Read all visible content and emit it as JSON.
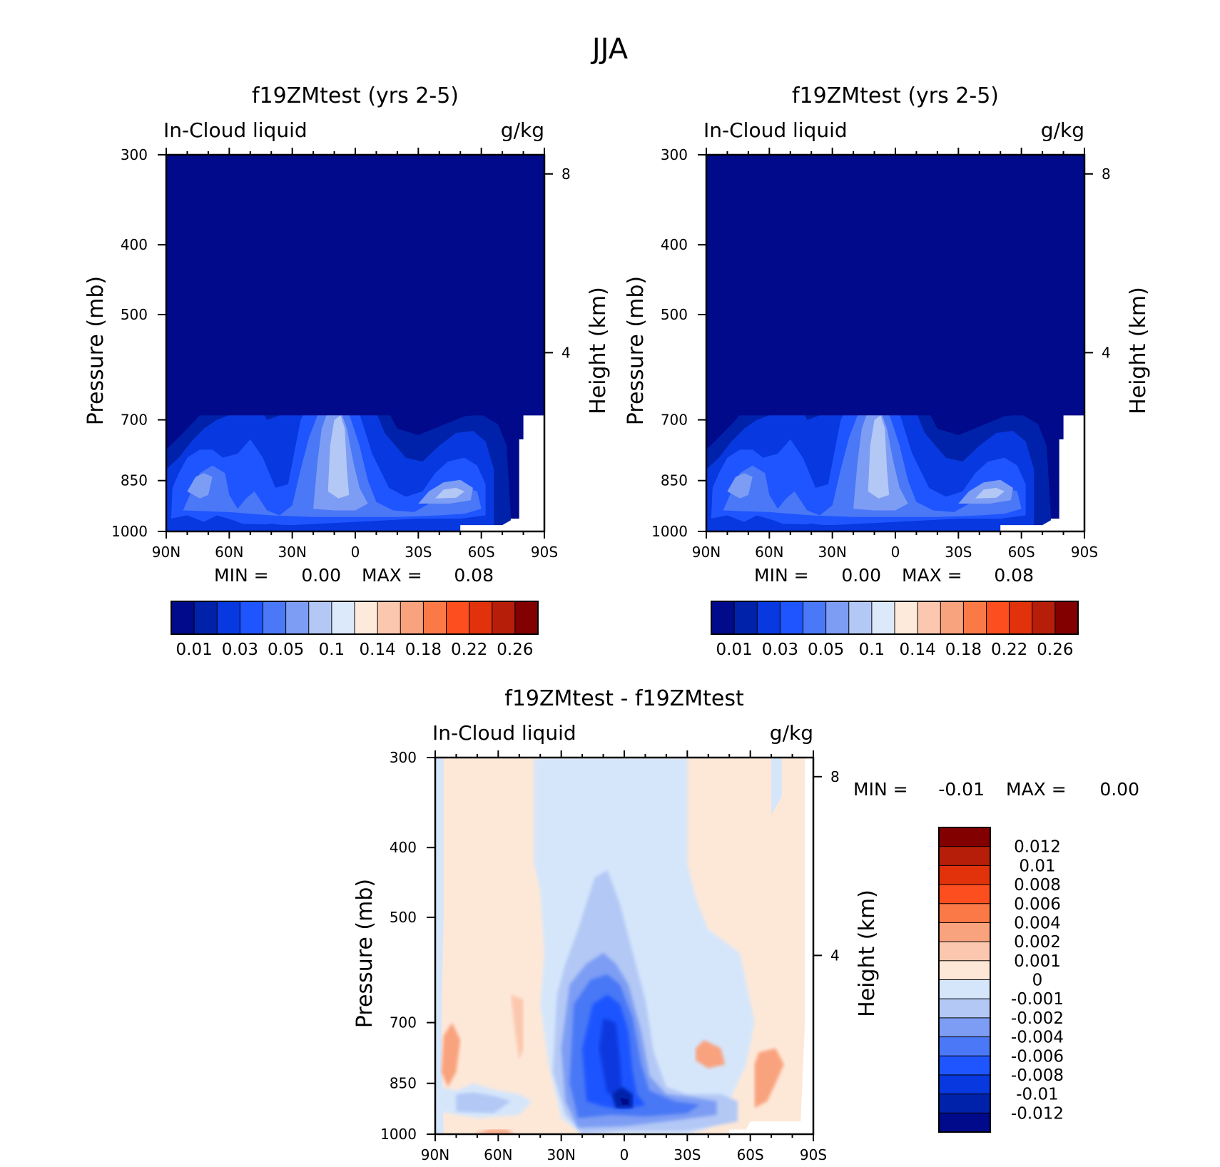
{
  "figure_title": "JJA",
  "chart_data": [
    {
      "type": "heatmap",
      "panel_title": "f19ZMtest (yrs 2-5)",
      "variable": "In-Cloud liquid",
      "units": "g/kg",
      "xlabel": "",
      "ylabel": "Pressure (mb)",
      "ylabel_right": "Height (km)",
      "xlim": [
        90,
        -90
      ],
      "ylim": [
        1000,
        300
      ],
      "x_ticks": [
        "90N",
        "60N",
        "30N",
        "0",
        "30S",
        "60S",
        "90S"
      ],
      "y_ticks": [
        "300",
        "400",
        "500",
        "700",
        "850",
        "1000"
      ],
      "y_ticks_right": [
        "8",
        "4"
      ],
      "min_label": "MIN =",
      "min_value": "0.00",
      "max_label": "MAX =",
      "max_value": "0.08",
      "colorbar_levels": [
        0.01,
        0.02,
        0.03,
        0.04,
        0.05,
        0.06,
        0.08,
        0.1,
        0.12,
        0.14,
        0.16,
        0.18,
        0.2,
        0.22,
        0.24,
        0.26
      ],
      "colorbar_tick_labels": [
        "0.01",
        "0.03",
        "0.05",
        "0.1",
        "0.14",
        "0.18",
        "0.22",
        "0.26"
      ],
      "colorbar_orientation": "horizontal"
    },
    {
      "type": "heatmap",
      "panel_title": "f19ZMtest (yrs 2-5)",
      "variable": "In-Cloud liquid",
      "units": "g/kg",
      "xlabel": "",
      "ylabel": "Pressure (mb)",
      "ylabel_right": "Height (km)",
      "xlim": [
        90,
        -90
      ],
      "ylim": [
        1000,
        300
      ],
      "x_ticks": [
        "90N",
        "60N",
        "30N",
        "0",
        "30S",
        "60S",
        "90S"
      ],
      "y_ticks": [
        "300",
        "400",
        "500",
        "700",
        "850",
        "1000"
      ],
      "y_ticks_right": [
        "8",
        "4"
      ],
      "min_label": "MIN =",
      "min_value": "0.00",
      "max_label": "MAX =",
      "max_value": "0.08",
      "colorbar_levels": [
        0.01,
        0.02,
        0.03,
        0.04,
        0.05,
        0.06,
        0.08,
        0.1,
        0.12,
        0.14,
        0.16,
        0.18,
        0.2,
        0.22,
        0.24,
        0.26
      ],
      "colorbar_tick_labels": [
        "0.01",
        "0.03",
        "0.05",
        "0.1",
        "0.14",
        "0.18",
        "0.22",
        "0.26"
      ],
      "colorbar_orientation": "horizontal"
    },
    {
      "type": "heatmap",
      "panel_title": "f19ZMtest - f19ZMtest",
      "variable": "In-Cloud liquid",
      "units": "g/kg",
      "xlabel": "",
      "ylabel": "Pressure (mb)",
      "ylabel_right": "Height (km)",
      "xlim": [
        90,
        -90
      ],
      "ylim": [
        1000,
        300
      ],
      "x_ticks": [
        "90N",
        "60N",
        "30N",
        "0",
        "30S",
        "60S",
        "90S"
      ],
      "y_ticks": [
        "300",
        "400",
        "500",
        "700",
        "850",
        "1000"
      ],
      "y_ticks_right": [
        "8",
        "4"
      ],
      "min_label": "MIN =",
      "min_value": "-0.01",
      "max_label": "MAX =",
      "max_value": "0.00",
      "colorbar_levels": [
        -0.012,
        -0.01,
        -0.008,
        -0.006,
        -0.004,
        -0.002,
        -0.001,
        0,
        0.001,
        0.002,
        0.004,
        0.006,
        0.008,
        0.01,
        0.012
      ],
      "colorbar_tick_labels": [
        "0.012",
        "0.01",
        "0.008",
        "0.006",
        "0.004",
        "0.002",
        "0.001",
        "0",
        "-0.001",
        "-0.002",
        "-0.004",
        "-0.006",
        "-0.008",
        "-0.01",
        "-0.012"
      ],
      "colorbar_orientation": "vertical"
    }
  ],
  "colors": {
    "abs_scale": [
      "#000a8a",
      "#0022aa",
      "#0838df",
      "#1f55ff",
      "#4a78f6",
      "#7d9df4",
      "#b3c8f5",
      "#dce9fb",
      "#feeadb",
      "#fbc7ae",
      "#f9a27e",
      "#fb7847",
      "#fc4e1e",
      "#e1320c",
      "#b71e0a",
      "#820000"
    ],
    "diff_scale": [
      "#000a8a",
      "#0022aa",
      "#0838df",
      "#1f55ff",
      "#4a78f6",
      "#7d9df4",
      "#b3c8f5",
      "#d5e6fb",
      "#fde8d8",
      "#fbc7ae",
      "#f9a27e",
      "#fb7847",
      "#fc4e1e",
      "#e1320c",
      "#b71e0a",
      "#820000"
    ]
  }
}
